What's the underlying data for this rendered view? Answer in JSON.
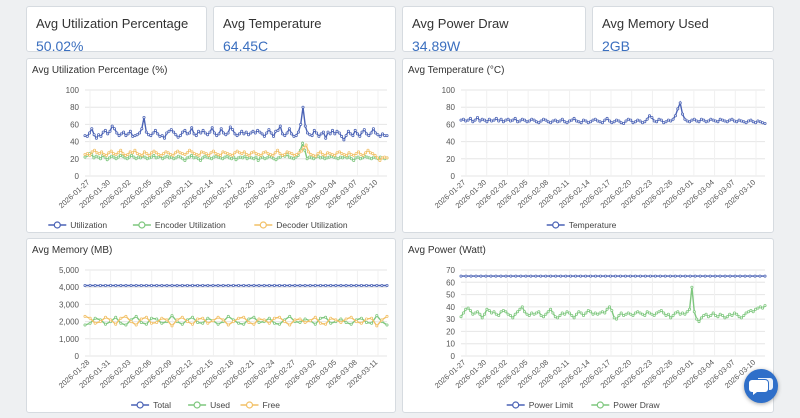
{
  "stats": [
    {
      "title": "Avg Utilization Percentage",
      "value": "50.02%"
    },
    {
      "title": "Avg Temperature",
      "value": "64.45C"
    },
    {
      "title": "Avg Power Draw",
      "value": "34.89W"
    },
    {
      "title": "Avg Memory Used",
      "value": "2GB"
    }
  ],
  "colors": {
    "blue": "#4a62b5",
    "green": "#7ec77e",
    "yellow": "#f2c066",
    "value_text": "#3b6fbf"
  },
  "icons": {
    "chat": "chat-bubbles-icon"
  },
  "chart_data": [
    {
      "type": "line",
      "title": "Avg Utilization Percentage (%)",
      "ylim": [
        0,
        100
      ],
      "yticks": [
        0,
        20,
        40,
        60,
        80,
        100
      ],
      "grid": true,
      "legend": "bottom",
      "x_tick_labels": [
        "2026-01-27",
        "2026-01-30",
        "2026-02-02",
        "2026-02-05",
        "2026-02-08",
        "2026-02-11",
        "2026-02-14",
        "2026-02-17",
        "2026-02-20",
        "2026-02-23",
        "2026-02-26",
        "2026-03-01",
        "2026-03-04",
        "2026-03-07",
        "2026-03-10"
      ],
      "series": [
        {
          "name": "Utilization",
          "color": "#4a62b5",
          "values": [
            47,
            46,
            50,
            55,
            48,
            44,
            48,
            46,
            51,
            53,
            49,
            52,
            58,
            55,
            50,
            47,
            49,
            51,
            47,
            49,
            52,
            46,
            47,
            48,
            50,
            55,
            68,
            51,
            48,
            47,
            50,
            53,
            49,
            46,
            47,
            44,
            50,
            52,
            54,
            51,
            48,
            45,
            47,
            51,
            53,
            49,
            50,
            56,
            49,
            47,
            52,
            50,
            53,
            50,
            48,
            51,
            56,
            50,
            47,
            49,
            55,
            50,
            48,
            50,
            57,
            54,
            49,
            47,
            49,
            52,
            49,
            51,
            48,
            50,
            52,
            50,
            53,
            51,
            49,
            46,
            50,
            54,
            50,
            46,
            52,
            53,
            58,
            49,
            47,
            50,
            55,
            49,
            46,
            47,
            51,
            60,
            80,
            58,
            50,
            48,
            47,
            53,
            50,
            46,
            49,
            51,
            44,
            51,
            49,
            53,
            49,
            52,
            50,
            46,
            42,
            47,
            52,
            49,
            47,
            53,
            49,
            46,
            51,
            54,
            49,
            47,
            50,
            55,
            50,
            48,
            46,
            49,
            47,
            47
          ]
        },
        {
          "name": "Encoder Utilization",
          "color": "#7ec77e",
          "values": [
            22,
            24,
            26,
            25,
            21,
            23,
            22,
            20,
            24,
            22,
            19,
            21,
            23,
            22,
            20,
            22,
            24,
            23,
            21,
            20,
            22,
            24,
            22,
            20,
            22,
            21,
            23,
            22,
            20,
            21,
            22,
            24,
            21,
            22,
            23,
            20,
            22,
            23,
            21,
            22,
            20,
            21,
            23,
            22,
            20,
            18,
            21,
            22,
            24,
            21,
            22,
            20,
            18,
            21,
            23,
            22,
            21,
            20,
            22,
            23,
            22,
            21,
            20,
            22,
            23,
            21,
            20,
            22,
            19,
            21,
            22,
            21,
            23,
            20,
            22,
            21,
            20,
            22,
            18,
            21,
            22,
            20,
            21,
            23,
            22,
            20,
            19,
            21,
            22,
            24,
            23,
            25,
            22,
            21,
            20,
            22,
            24,
            30,
            38,
            30,
            20,
            22,
            21,
            20,
            22,
            23,
            21,
            22,
            20,
            21,
            22,
            23,
            22,
            21,
            20,
            22,
            21,
            23,
            21,
            22,
            20,
            18,
            21,
            22,
            20,
            21,
            23,
            22,
            21,
            20,
            22,
            21,
            20,
            22,
            21,
            20,
            21
          ]
        },
        {
          "name": "Decoder Utilization",
          "color": "#f2c066",
          "values": [
            25,
            26,
            24,
            28,
            30,
            27,
            26,
            28,
            25,
            24,
            27,
            29,
            26,
            25,
            27,
            30,
            26,
            24,
            25,
            28,
            27,
            30,
            26,
            25,
            24,
            28,
            26,
            24,
            27,
            29,
            27,
            25,
            24,
            26,
            28,
            27,
            25,
            24,
            27,
            29,
            27,
            26,
            25,
            27,
            30,
            28,
            26,
            25,
            24,
            28,
            27,
            26,
            24,
            27,
            29,
            26,
            25,
            24,
            28,
            27,
            26,
            25,
            24,
            27,
            29,
            27,
            26,
            28,
            25,
            24,
            27,
            28,
            26,
            25,
            24,
            27,
            28,
            26,
            25,
            24,
            27,
            30,
            26,
            24,
            25,
            28,
            27,
            26,
            24,
            25,
            27,
            29,
            33,
            36,
            28,
            25,
            24,
            23,
            26,
            28,
            25,
            24,
            27,
            26,
            25,
            24,
            27,
            28,
            26,
            25,
            24,
            27,
            25,
            24,
            26,
            28,
            25,
            24,
            27,
            30,
            27,
            26,
            24,
            21,
            18,
            21,
            22,
            21
          ]
        }
      ]
    },
    {
      "type": "line",
      "title": "Avg Temperature (°C)",
      "ylim": [
        0,
        100
      ],
      "yticks": [
        0,
        20,
        40,
        60,
        80,
        100
      ],
      "grid": true,
      "legend": "bottom",
      "x_tick_labels": [
        "2026-01-27",
        "2026-01-30",
        "2026-02-02",
        "2026-02-05",
        "2026-02-08",
        "2026-02-11",
        "2026-02-14",
        "2026-02-17",
        "2026-02-20",
        "2026-02-23",
        "2026-02-26",
        "2026-03-01",
        "2026-03-04",
        "2026-03-07",
        "2026-03-10"
      ],
      "series": [
        {
          "name": "Temperature",
          "color": "#4a62b5",
          "values": [
            65,
            66,
            64,
            65,
            67,
            63,
            65,
            68,
            64,
            66,
            65,
            63,
            66,
            64,
            65,
            67,
            64,
            66,
            63,
            65,
            66,
            64,
            65,
            67,
            63,
            64,
            66,
            65,
            63,
            64,
            66,
            65,
            63,
            62,
            64,
            66,
            65,
            63,
            62,
            64,
            65,
            63,
            64,
            66,
            63,
            62,
            64,
            65,
            67,
            64,
            63,
            62,
            65,
            64,
            62,
            63,
            65,
            66,
            64,
            63,
            62,
            65,
            67,
            64,
            62,
            63,
            65,
            64,
            62,
            61,
            64,
            66,
            65,
            62,
            63,
            65,
            64,
            62,
            63,
            66,
            70,
            68,
            64,
            63,
            66,
            65,
            62,
            63,
            65,
            64,
            66,
            70,
            78,
            85,
            72,
            66,
            64,
            63,
            65,
            66,
            64,
            63,
            66,
            65,
            63,
            64,
            66,
            65,
            64,
            63,
            66,
            65,
            64,
            63,
            65,
            66,
            64,
            63,
            65,
            64,
            63,
            62,
            64,
            65,
            63,
            62,
            64,
            63,
            62,
            61
          ]
        }
      ]
    },
    {
      "type": "line",
      "title": "Avg Memory (MB)",
      "ylim": [
        0,
        5000
      ],
      "yticks": [
        0,
        1000,
        2000,
        3000,
        4000,
        5000
      ],
      "grid": true,
      "legend": "bottom",
      "x_tick_labels": [
        "2026-01-28",
        "2026-01-31",
        "2026-02-03",
        "2026-02-06",
        "2026-02-09",
        "2026-02-12",
        "2026-02-15",
        "2026-02-18",
        "2026-02-21",
        "2026-02-24",
        "2026-02-27",
        "2026-03-02",
        "2026-03-05",
        "2026-03-08",
        "2026-03-11"
      ],
      "series": [
        {
          "name": "Total",
          "color": "#4a62b5",
          "values": [
            4096,
            4096,
            4096,
            4096,
            4096,
            4096,
            4096,
            4096,
            4096,
            4096,
            4096,
            4096,
            4096,
            4096,
            4096,
            4096,
            4096,
            4096,
            4096,
            4096,
            4096,
            4096,
            4096,
            4096,
            4096,
            4096,
            4096,
            4096,
            4096,
            4096,
            4096,
            4096,
            4096,
            4096,
            4096,
            4096,
            4096,
            4096,
            4096,
            4096,
            4096,
            4096,
            4096,
            4096,
            4096,
            4096,
            4096,
            4096,
            4096,
            4096,
            4096,
            4096,
            4096,
            4096,
            4096,
            4096,
            4096,
            4096,
            4096,
            4096
          ]
        },
        {
          "name": "Used",
          "color": "#7ec77e",
          "values": [
            1800,
            1900,
            2200,
            2100,
            1850,
            2000,
            2250,
            1900,
            1800,
            2100,
            2300,
            1950,
            1850,
            2200,
            2150,
            1900,
            2000,
            2350,
            2000,
            1850,
            2100,
            2250,
            1950,
            1900,
            2200,
            2050,
            1850,
            2000,
            2300,
            2100,
            1900,
            1850,
            2150,
            2250,
            1950,
            2000,
            2200,
            1900,
            1850,
            2100,
            2300,
            2000,
            1950,
            2150,
            2050,
            1850,
            2200,
            2250,
            1900,
            2000,
            2150,
            1950,
            1850,
            2100,
            2200,
            1950,
            1900,
            2350,
            2000,
            1800
          ]
        },
        {
          "name": "Free",
          "color": "#f2c066",
          "values": [
            2300,
            2200,
            1900,
            2000,
            2250,
            2100,
            1850,
            2200,
            2300,
            2000,
            1800,
            2150,
            2250,
            1900,
            1950,
            2200,
            2100,
            1750,
            2100,
            2250,
            2000,
            1850,
            2150,
            2200,
            1900,
            2050,
            2250,
            2100,
            1800,
            2000,
            2200,
            2250,
            1950,
            1850,
            2150,
            2100,
            1900,
            2200,
            2250,
            2000,
            1800,
            2100,
            2150,
            1950,
            2050,
            2250,
            1900,
            1850,
            2200,
            2100,
            1950,
            2150,
            2250,
            2000,
            1900,
            2150,
            2200,
            1750,
            2100,
            2300
          ]
        }
      ]
    },
    {
      "type": "line",
      "title": "Avg Power (Watt)",
      "ylim": [
        0,
        70
      ],
      "yticks": [
        0,
        10,
        20,
        30,
        40,
        50,
        60,
        70
      ],
      "grid": true,
      "legend": "bottom",
      "x_tick_labels": [
        "2026-01-27",
        "2026-01-30",
        "2026-02-02",
        "2026-02-05",
        "2026-02-08",
        "2026-02-11",
        "2026-02-14",
        "2026-02-17",
        "2026-02-20",
        "2026-02-23",
        "2026-02-26",
        "2026-03-01",
        "2026-03-04",
        "2026-03-07",
        "2026-03-10"
      ],
      "series": [
        {
          "name": "Power Limit",
          "color": "#4a62b5",
          "values": [
            65,
            65,
            65,
            65,
            65,
            65,
            65,
            65,
            65,
            65,
            65,
            65,
            65,
            65,
            65,
            65,
            65,
            65,
            65,
            65,
            65,
            65,
            65,
            65,
            65,
            65,
            65,
            65,
            65,
            65,
            65,
            65,
            65,
            65,
            65,
            65,
            65,
            65,
            65,
            65,
            65,
            65,
            65,
            65,
            65,
            65,
            65,
            65,
            65,
            65,
            65,
            65,
            65,
            65,
            65,
            65,
            65,
            65,
            65,
            65,
            65,
            65
          ]
        },
        {
          "name": "Power Draw",
          "color": "#7ec77e",
          "values": [
            32,
            35,
            38,
            39,
            37,
            34,
            35,
            36,
            34,
            31,
            34,
            38,
            37,
            35,
            36,
            34,
            33,
            36,
            37,
            36,
            34,
            33,
            31,
            34,
            36,
            38,
            40,
            36,
            34,
            33,
            35,
            34,
            35,
            36,
            33,
            32,
            34,
            36,
            38,
            35,
            32,
            31,
            33,
            35,
            34,
            36,
            35,
            33,
            31,
            34,
            36,
            35,
            33,
            35,
            37,
            36,
            34,
            35,
            34,
            35,
            36,
            35,
            38,
            40,
            37,
            31,
            30,
            33,
            35,
            33,
            34,
            35,
            34,
            33,
            35,
            36,
            35,
            34,
            33,
            36,
            35,
            34,
            33,
            35,
            36,
            37,
            35,
            33,
            34,
            31,
            33,
            35,
            36,
            34,
            35,
            34,
            36,
            38,
            56,
            36,
            30,
            28,
            31,
            33,
            34,
            32,
            33,
            35,
            33,
            32,
            34,
            33,
            31,
            32,
            34,
            33,
            35,
            34,
            32,
            31,
            33,
            35,
            36,
            37,
            36,
            38,
            39,
            40,
            39,
            41
          ]
        }
      ]
    }
  ]
}
